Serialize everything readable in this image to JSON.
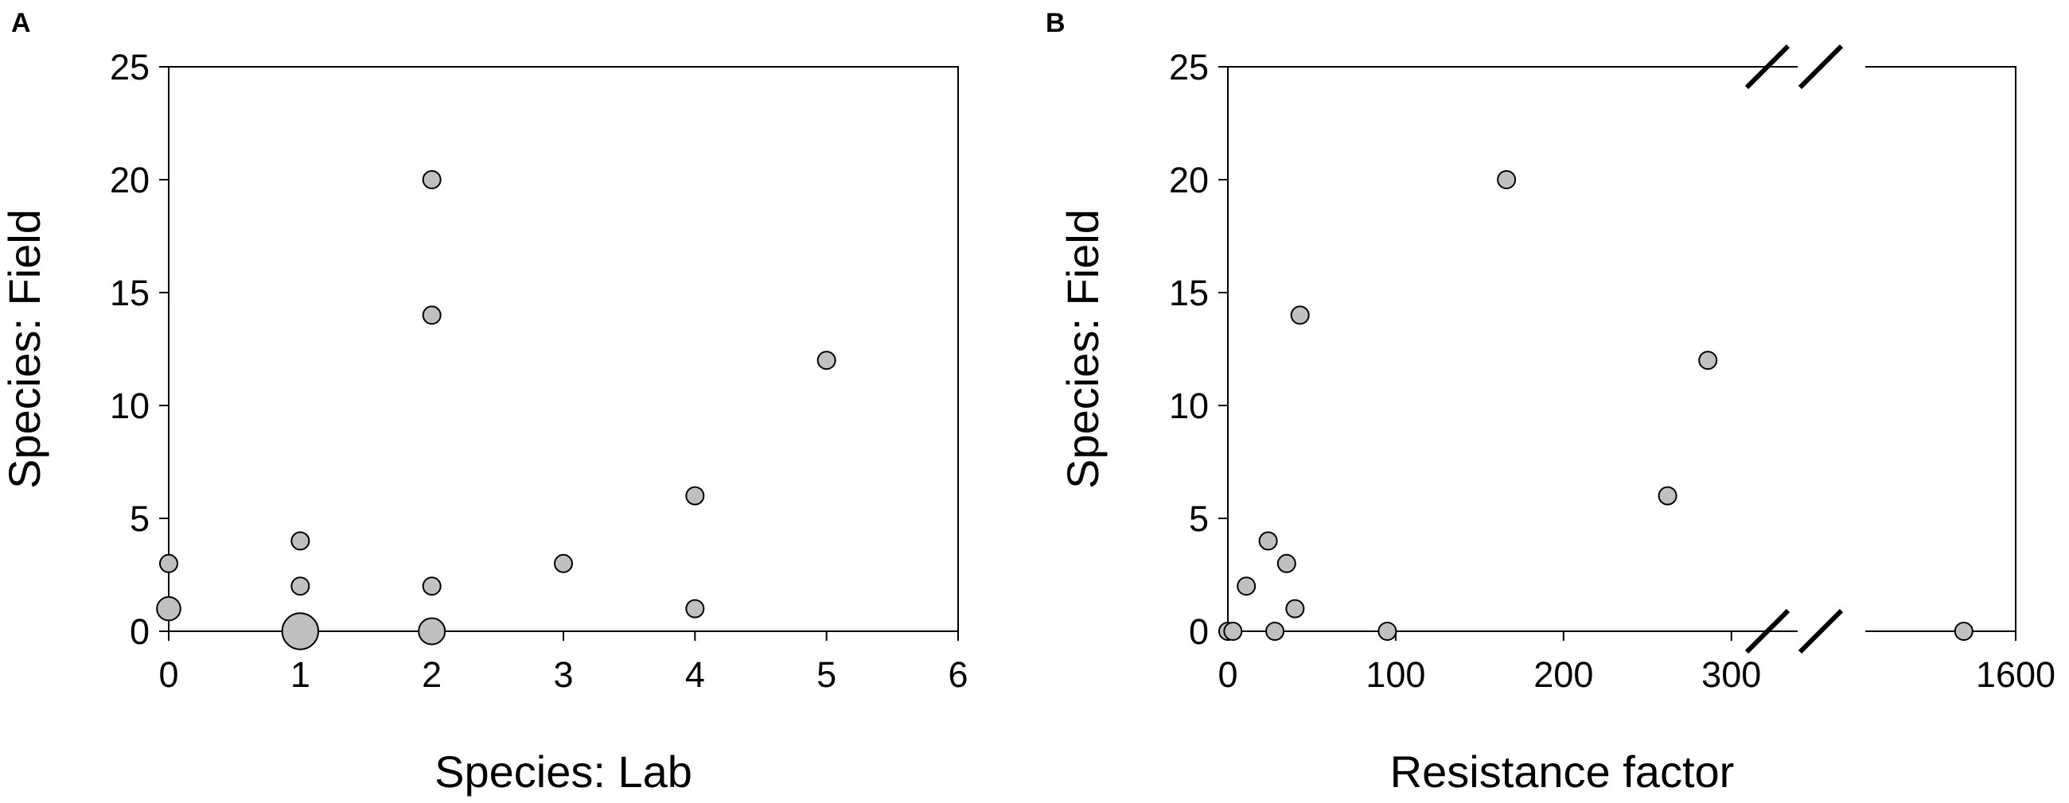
{
  "chart_data": [
    {
      "panel": "A",
      "type": "scatter",
      "title": "",
      "xlabel": "Species: Lab",
      "ylabel": "Species: Field",
      "xlim": [
        0,
        6
      ],
      "ylim": [
        0,
        25
      ],
      "xticks": [
        "0",
        "1",
        "2",
        "3",
        "4",
        "5",
        "6"
      ],
      "yticks": [
        "0",
        "5",
        "10",
        "15",
        "20",
        "25"
      ],
      "grid": false,
      "legend": "none",
      "marker_color": "#c0c0c0",
      "points": [
        {
          "x": 0,
          "y": 3,
          "size": 1
        },
        {
          "x": 0,
          "y": 1,
          "size": 2
        },
        {
          "x": 1,
          "y": 4,
          "size": 1
        },
        {
          "x": 1,
          "y": 2,
          "size": 1
        },
        {
          "x": 1,
          "y": 0,
          "size": 7
        },
        {
          "x": 2,
          "y": 20,
          "size": 1
        },
        {
          "x": 2,
          "y": 14,
          "size": 1
        },
        {
          "x": 2,
          "y": 2,
          "size": 1
        },
        {
          "x": 2,
          "y": 0,
          "size": 2.5
        },
        {
          "x": 3,
          "y": 3,
          "size": 1
        },
        {
          "x": 4,
          "y": 6,
          "size": 1
        },
        {
          "x": 4,
          "y": 1,
          "size": 1
        },
        {
          "x": 5,
          "y": 12,
          "size": 1
        }
      ]
    },
    {
      "panel": "B",
      "type": "scatter",
      "title": "",
      "xlabel": "Resistance factor",
      "ylabel": "Species: Field",
      "xlim": [
        0,
        1600
      ],
      "x_axis_break": [
        330,
        1550
      ],
      "ylim": [
        0,
        25
      ],
      "xticks": [
        "0",
        "100",
        "200",
        "300",
        "1600"
      ],
      "yticks": [
        "0",
        "5",
        "10",
        "15",
        "20",
        "25"
      ],
      "grid": false,
      "legend": "none",
      "marker_color": "#c0c0c0",
      "points": [
        {
          "x": 0,
          "y": 0
        },
        {
          "x": 3,
          "y": 0
        },
        {
          "x": 11,
          "y": 2
        },
        {
          "x": 24,
          "y": 4
        },
        {
          "x": 28,
          "y": 0
        },
        {
          "x": 35,
          "y": 3
        },
        {
          "x": 40,
          "y": 1
        },
        {
          "x": 43,
          "y": 14
        },
        {
          "x": 95,
          "y": 0
        },
        {
          "x": 166,
          "y": 20
        },
        {
          "x": 262,
          "y": 6
        },
        {
          "x": 286,
          "y": 12
        },
        {
          "x": 1580,
          "y": 0
        }
      ]
    }
  ]
}
